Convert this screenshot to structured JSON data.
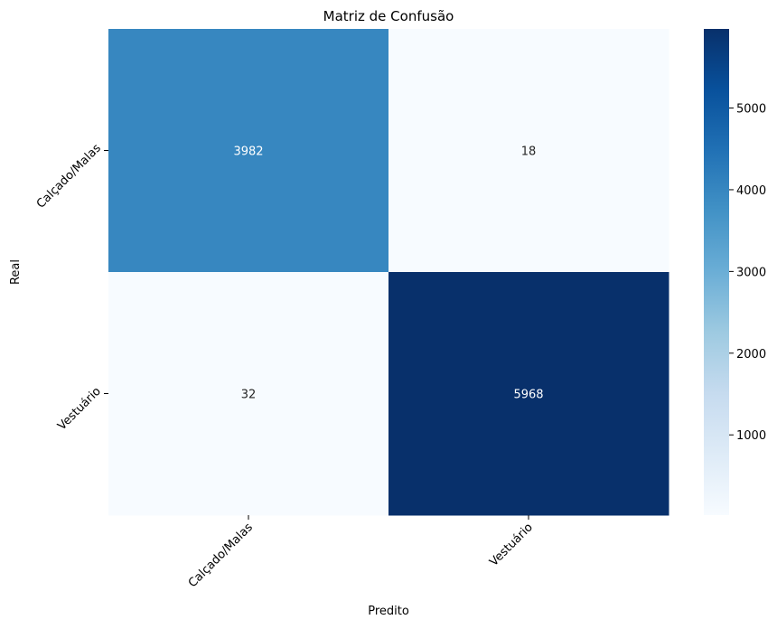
{
  "chart_data": {
    "type": "heatmap",
    "title": "Matriz de Confusão",
    "xlabel": "Predito",
    "ylabel": "Real",
    "x_categories": [
      "Calçado/Malas",
      "Vestuário"
    ],
    "y_categories": [
      "Calçado/Malas",
      "Vestuário"
    ],
    "values": [
      [
        3982,
        18
      ],
      [
        32,
        5968
      ]
    ],
    "annotations": true,
    "colormap": "Blues",
    "colorbar": {
      "range": [
        18,
        5968
      ],
      "ticks": [
        1000,
        2000,
        3000,
        4000,
        5000
      ]
    },
    "tick_label_rotation_deg": 45
  },
  "colors": {
    "low": "#f7fbff",
    "high": "#08306b",
    "text_light": "#ffffff",
    "text_dark": "#262626"
  }
}
